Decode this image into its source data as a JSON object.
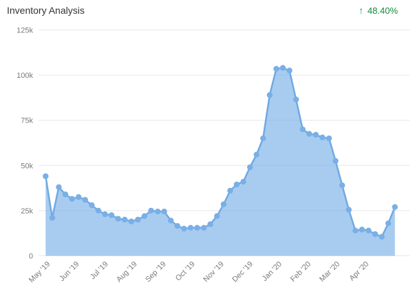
{
  "header": {
    "title": "Inventory Analysis",
    "change": {
      "arrow": "↑",
      "value": "48.40%",
      "direction": "up",
      "color": "#0e8a3c",
      "arrow_color": "#22a04a"
    }
  },
  "chart_data": {
    "type": "area",
    "title": "Inventory Analysis",
    "series": [
      {
        "name": "Inventory",
        "values": [
          44000,
          21000,
          38000,
          34000,
          31500,
          32500,
          31000,
          28000,
          25000,
          23000,
          22500,
          20500,
          20000,
          19000,
          20000,
          22000,
          25000,
          24500,
          24500,
          19500,
          16500,
          15000,
          15500,
          15500,
          15500,
          17500,
          22000,
          28500,
          36000,
          39500,
          41000,
          49000,
          56000,
          65000,
          89000,
          103500,
          104000,
          102500,
          86500,
          70000,
          67500,
          67000,
          65500,
          65000,
          52500,
          39000,
          25500,
          14000,
          14500,
          14000,
          12000,
          10500,
          18000,
          27000
        ]
      }
    ],
    "x_interval": "weekly",
    "x_tick_labels": [
      "May '19",
      "Jun '19",
      "Jul '19",
      "Aug '19",
      "Sep '19",
      "Oct '19",
      "Nov '19",
      "Dec '19",
      "Jan '20",
      "Feb '20",
      "Mar '20",
      "Apr '20"
    ],
    "y_tick_labels": [
      "0",
      "25k",
      "50k",
      "75k",
      "100k",
      "125k"
    ],
    "y_tick_values": [
      0,
      25000,
      50000,
      75000,
      100000,
      125000
    ],
    "ylim": [
      0,
      125000
    ],
    "grid": "horizontal",
    "legend": "none",
    "markers": true,
    "colors": {
      "line": "#6fa9e2",
      "marker": "#79afe6",
      "fill": "rgba(110,170,228,0.6)",
      "grid_line": "#e7e7e7",
      "axis_text": "#7a7a7a"
    }
  }
}
